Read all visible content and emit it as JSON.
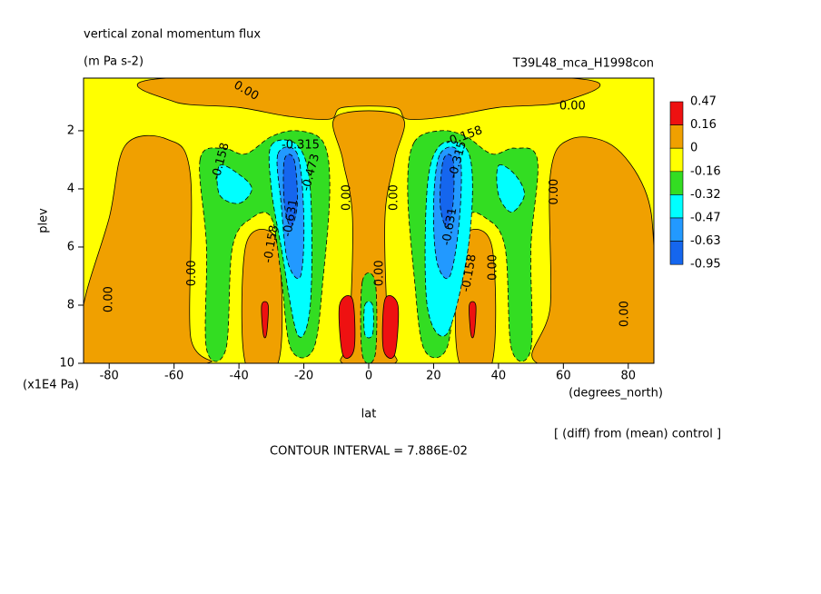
{
  "chart_data": {
    "type": "contour",
    "title": "vertical zonal momentum flux",
    "subtitle": "(m Pa s-2)",
    "dataset": "T39L48_mca_H1998con",
    "x_label": "lat",
    "x_unit": "(degrees_north)",
    "y_label": "plev",
    "y_unit": "(x1E4 Pa)",
    "footnote": "[ (diff) from (mean) control ]",
    "contour_interval": "CONTOUR INTERVAL = 7.886E-02",
    "xlim": [
      -87.9,
      87.9
    ],
    "xticks": [
      -80,
      -60,
      -40,
      -20,
      0,
      20,
      40,
      60,
      80
    ],
    "ylim": [
      0.19,
      10
    ],
    "y_reversed": true,
    "yticks": [
      2,
      4,
      6,
      8,
      10
    ],
    "levels": [
      0.47,
      0.16,
      0,
      -0.16,
      -0.32,
      -0.47,
      -0.63,
      -0.95
    ],
    "colors": [
      "#ee1111",
      "#f0a000",
      "#ffff00",
      "#33dd22",
      "#00ffff",
      "#2299ff",
      "#1566ee"
    ],
    "background_level": 2,
    "regions": [
      {
        "level": 1,
        "points": [
          [
            -62,
            0.19
          ],
          [
            62,
            0.19
          ],
          [
            60,
            1.0
          ],
          [
            40,
            1.2
          ],
          [
            25,
            1.5
          ],
          [
            12,
            1.6
          ],
          [
            8,
            1.2
          ],
          [
            -8,
            1.2
          ],
          [
            -12,
            1.6
          ],
          [
            -25,
            1.5
          ],
          [
            -40,
            1.2
          ],
          [
            -60,
            1.0
          ]
        ]
      },
      {
        "level": 1,
        "points": [
          [
            -10,
            1.5
          ],
          [
            10,
            1.5
          ],
          [
            8,
            3
          ],
          [
            5,
            5
          ],
          [
            6,
            9
          ],
          [
            8,
            10
          ],
          [
            -8,
            10
          ],
          [
            -6,
            9
          ],
          [
            -5,
            5
          ],
          [
            -8,
            3
          ]
        ]
      },
      {
        "level": 1,
        "points": [
          [
            -75,
            2.5
          ],
          [
            -62,
            2.3
          ],
          [
            -55,
            3.5
          ],
          [
            -55,
            9
          ],
          [
            -50,
            10
          ],
          [
            -87.9,
            10
          ],
          [
            -87.9,
            8
          ],
          [
            -80,
            5
          ]
        ]
      },
      {
        "level": 1,
        "points": [
          [
            62,
            2.3
          ],
          [
            75,
            2.5
          ],
          [
            85,
            4
          ],
          [
            87.9,
            6
          ],
          [
            87.9,
            10
          ],
          [
            52,
            10
          ],
          [
            56,
            8
          ],
          [
            56,
            3.5
          ]
        ]
      },
      {
        "level": 1,
        "points": [
          [
            -38,
            6
          ],
          [
            -30,
            5.5
          ],
          [
            -27,
            7
          ],
          [
            -28,
            10
          ],
          [
            -38,
            10
          ]
        ]
      },
      {
        "level": 1,
        "points": [
          [
            30,
            5.5
          ],
          [
            38,
            6
          ],
          [
            38,
            10
          ],
          [
            28,
            10
          ],
          [
            27,
            7
          ]
        ]
      },
      {
        "level": 3,
        "points": [
          [
            -52,
            3
          ],
          [
            -45,
            2.6
          ],
          [
            -38,
            2.8
          ],
          [
            -30,
            2.2
          ],
          [
            -22,
            2
          ],
          [
            -14,
            2.4
          ],
          [
            -12,
            4
          ],
          [
            -14,
            7
          ],
          [
            -17,
            9.5
          ],
          [
            -24,
            9.5
          ],
          [
            -27,
            7
          ],
          [
            -30,
            5
          ],
          [
            -36,
            5
          ],
          [
            -42,
            6
          ],
          [
            -44,
            9.5
          ],
          [
            -50,
            9.5
          ],
          [
            -50,
            6
          ]
        ]
      },
      {
        "level": 3,
        "points": [
          [
            14,
            2.4
          ],
          [
            22,
            2
          ],
          [
            30,
            2.2
          ],
          [
            38,
            2.8
          ],
          [
            45,
            2.6
          ],
          [
            52,
            3
          ],
          [
            50,
            6
          ],
          [
            50,
            9.5
          ],
          [
            44,
            9.5
          ],
          [
            42,
            6
          ],
          [
            36,
            5
          ],
          [
            30,
            5
          ],
          [
            27,
            7
          ],
          [
            24,
            9.5
          ],
          [
            17,
            9.5
          ],
          [
            14,
            7
          ],
          [
            12,
            4
          ]
        ]
      },
      {
        "level": 4,
        "points": [
          [
            -46,
            3.2
          ],
          [
            -40,
            3.5
          ],
          [
            -36,
            4
          ],
          [
            -40,
            4.5
          ],
          [
            -46,
            4.2
          ]
        ]
      },
      {
        "level": 4,
        "points": [
          [
            -30,
            2.5
          ],
          [
            -22,
            2.5
          ],
          [
            -18,
            4
          ],
          [
            -18,
            8
          ],
          [
            -22,
            9
          ],
          [
            -27,
            6
          ],
          [
            -30,
            4
          ]
        ]
      },
      {
        "level": 4,
        "points": [
          [
            40,
            3.2
          ],
          [
            45,
            3.5
          ],
          [
            48,
            4.2
          ],
          [
            44,
            4.8
          ],
          [
            40,
            4.2
          ]
        ]
      },
      {
        "level": 4,
        "points": [
          [
            22,
            2.5
          ],
          [
            30,
            2.6
          ],
          [
            32,
            4
          ],
          [
            30,
            6.5
          ],
          [
            24,
            9
          ],
          [
            18,
            8
          ],
          [
            18,
            4
          ]
        ]
      },
      {
        "level": 5,
        "points": [
          [
            -28,
            2.8
          ],
          [
            -22,
            2.8
          ],
          [
            -20,
            5
          ],
          [
            -21,
            7
          ],
          [
            -25,
            6.5
          ],
          [
            -27,
            4.5
          ]
        ]
      },
      {
        "level": 5,
        "points": [
          [
            22,
            2.8
          ],
          [
            28,
            2.8
          ],
          [
            28,
            5
          ],
          [
            25,
            7
          ],
          [
            21,
            6.5
          ],
          [
            20,
            4.5
          ]
        ]
      },
      {
        "level": 6,
        "points": [
          [
            -26,
            3
          ],
          [
            -23,
            3
          ],
          [
            -22,
            4.5
          ],
          [
            -24,
            5.3
          ],
          [
            -26,
            4.5
          ]
        ]
      },
      {
        "level": 6,
        "points": [
          [
            23,
            3
          ],
          [
            26,
            3
          ],
          [
            26,
            4.5
          ],
          [
            24,
            5.3
          ],
          [
            22,
            4.5
          ]
        ]
      },
      {
        "level": 0,
        "points": [
          [
            -33,
            8
          ],
          [
            -31,
            8
          ],
          [
            -31.5,
            9
          ],
          [
            -32.5,
            9
          ]
        ]
      },
      {
        "level": 0,
        "points": [
          [
            31,
            8
          ],
          [
            33,
            8
          ],
          [
            32.5,
            9
          ],
          [
            31.5,
            9
          ]
        ]
      },
      {
        "level": 0,
        "points": [
          [
            -9,
            8
          ],
          [
            -5,
            7.8
          ],
          [
            -4.5,
            9.5
          ],
          [
            -8,
            9.7
          ]
        ]
      },
      {
        "level": 0,
        "points": [
          [
            5,
            7.8
          ],
          [
            9,
            8
          ],
          [
            8,
            9.7
          ],
          [
            4.5,
            9.5
          ]
        ]
      },
      {
        "level": 3,
        "points": [
          [
            -2,
            7.2
          ],
          [
            2,
            7.2
          ],
          [
            2,
            9.7
          ],
          [
            -2,
            9.7
          ]
        ]
      },
      {
        "level": 4,
        "points": [
          [
            -1.2,
            8
          ],
          [
            1.2,
            8
          ],
          [
            1.2,
            9
          ],
          [
            -1.2,
            9
          ]
        ]
      }
    ],
    "contour_labels": [
      {
        "value": 0,
        "label": "0.00",
        "x": -37.8,
        "y": 0.63
      },
      {
        "value": 0,
        "label": "0.00",
        "x": 62.8,
        "y": 1.16
      },
      {
        "value": -0.158,
        "x": -45.6,
        "y": 3.06
      },
      {
        "value": -0.315,
        "x": -21,
        "y": 2.5
      },
      {
        "value": -0.473,
        "x": -17.8,
        "y": 3.44
      },
      {
        "value": -0.631,
        "x": -24,
        "y": 5
      },
      {
        "value": 0,
        "label": "0.00",
        "x": -6.7,
        "y": 4.3
      },
      {
        "value": 0,
        "label": "0.00",
        "x": 7.8,
        "y": 4.3
      },
      {
        "value": 0,
        "label": "0.00",
        "x": 57.2,
        "y": 4.1
      },
      {
        "value": -0.158,
        "x": 29.4,
        "y": 2.2
      },
      {
        "value": -0.315,
        "x": 27.5,
        "y": 3
      },
      {
        "value": -0.631,
        "x": 25,
        "y": 5.3
      },
      {
        "value": -0.158,
        "x": 31,
        "y": 6.9
      },
      {
        "value": 0,
        "label": "0.00",
        "x": 38.3,
        "y": 6.7
      },
      {
        "value": 0,
        "label": "0.00",
        "x": -54.4,
        "y": 6.9
      },
      {
        "value": 0,
        "label": "0.00",
        "x": -80,
        "y": 7.8
      },
      {
        "value": 0,
        "label": "0.00",
        "x": 79,
        "y": 8.3
      },
      {
        "value": 0,
        "label": "0.00",
        "x": 3.3,
        "y": 6.9
      },
      {
        "value": -0.158,
        "x": -30,
        "y": 5.9
      }
    ]
  }
}
